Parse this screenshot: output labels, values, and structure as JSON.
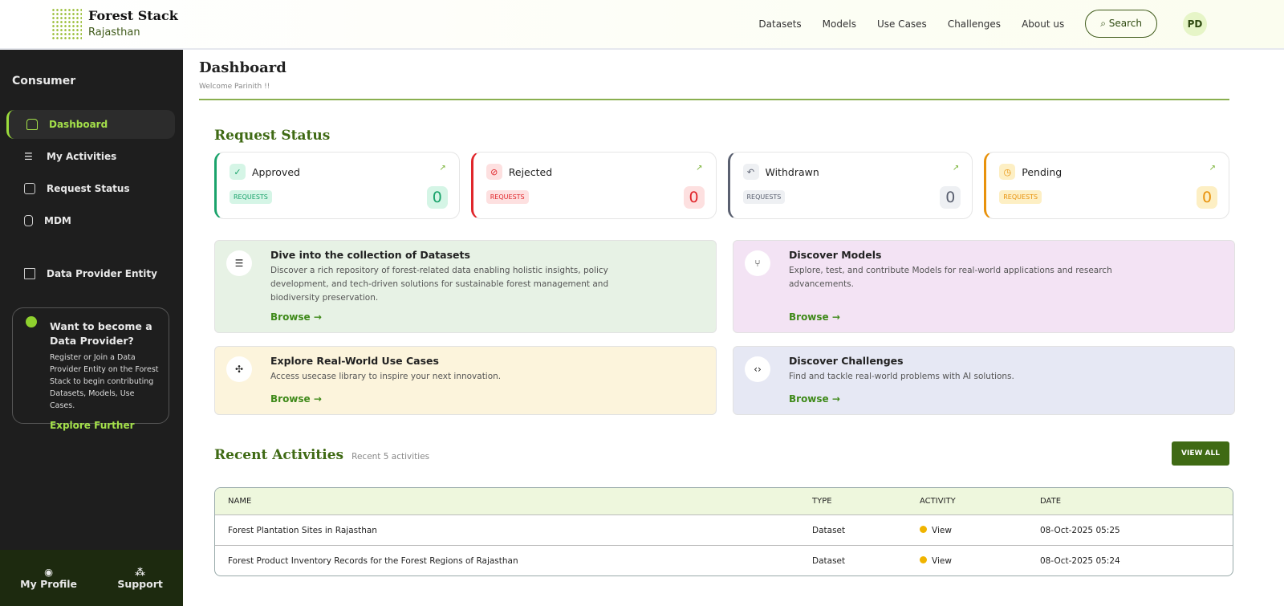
{
  "header": {
    "brand": "Forest Stack",
    "subtitle": "Rajasthan",
    "nav": [
      "Datasets",
      "Models",
      "Use Cases",
      "Challenges",
      "About us"
    ],
    "search": "Search",
    "avatar": "PD"
  },
  "sidebar": {
    "title": "Consumer",
    "items": [
      {
        "label": "Dashboard",
        "icon": "home-icon"
      },
      {
        "label": "My Activities",
        "icon": "menu-icon"
      },
      {
        "label": "Request Status",
        "icon": "copy-icon"
      },
      {
        "label": "MDM",
        "icon": "database-icon"
      },
      {
        "label": "Data Provider Entity",
        "icon": "building-icon"
      }
    ],
    "promo": {
      "title": "Want to become a Data Provider?",
      "text": "Register or Join a Data Provider Entity on the Forest Stack to begin contributing Datasets, Models, Use Cases.",
      "link": "Explore Further"
    },
    "footer": {
      "profile": "My Profile",
      "support": "Support"
    }
  },
  "page": {
    "title": "Dashboard",
    "welcome": "Welcome Parinith !!"
  },
  "request_status": {
    "title": "Request Status",
    "badge": "REQUESTS",
    "cards": [
      {
        "label": "Approved",
        "count": "0",
        "color": "#1aa36b",
        "bg": "#d5f5e6",
        "icon": "✓"
      },
      {
        "label": "Rejected",
        "count": "0",
        "color": "#e0262b",
        "bg": "#fde0e0",
        "icon": "⊘"
      },
      {
        "label": "Withdrawn",
        "count": "0",
        "color": "#5a6070",
        "bg": "#eef0f3",
        "icon": "↶"
      },
      {
        "label": "Pending",
        "count": "0",
        "color": "#e8920c",
        "bg": "#fdefc4",
        "icon": "◷"
      }
    ]
  },
  "discover": {
    "browse": "Browse →",
    "cards": [
      {
        "title": "Dive into the collection of Datasets",
        "text": "Discover a rich repository of forest-related data enabling holistic insights, policy development, and tech-driven solutions for sustainable forest management and biodiversity preservation.",
        "bg": "#e7f2e5",
        "icon": "☰"
      },
      {
        "title": "Discover Models",
        "text": "Explore, test, and contribute Models for real-world applications and research advancements.",
        "bg": "#f3e3f4",
        "icon": "⑂"
      },
      {
        "title": "Explore Real-World Use Cases",
        "text": "Access usecase library to inspire your next innovation.",
        "bg": "#fcf4dc",
        "icon": "✣"
      },
      {
        "title": "Discover Challenges",
        "text": "Find and tackle real-world problems with AI solutions.",
        "bg": "#e6e8f4",
        "icon": "‹›"
      }
    ]
  },
  "recent": {
    "title": "Recent Activities",
    "subtitle": "Recent 5 activities",
    "view_all": "VIEW ALL",
    "columns": [
      "NAME",
      "TYPE",
      "ACTIVITY",
      "DATE"
    ],
    "rows": [
      {
        "name": "Forest Plantation Sites in Rajasthan",
        "type": "Dataset",
        "activity": "View",
        "date": "08-Oct-2025 05:25"
      },
      {
        "name": "Forest Product Inventory Records for the Forest Regions of Rajasthan",
        "type": "Dataset",
        "activity": "View",
        "date": "08-Oct-2025 05:24"
      }
    ]
  }
}
